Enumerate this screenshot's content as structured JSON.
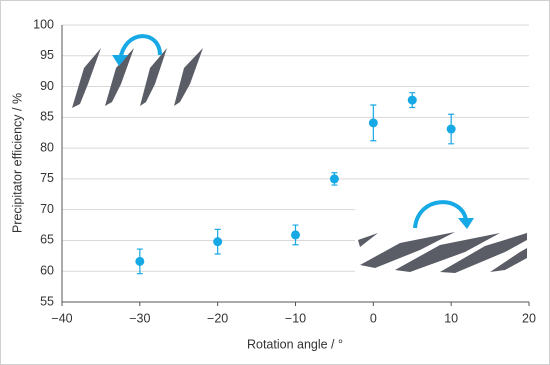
{
  "chart_data": {
    "type": "scatter",
    "xlabel": "Rotation angle / °",
    "ylabel": "Precipitator efficiency  / %",
    "series": [
      {
        "color": "#17a8e6",
        "x": [
          -30,
          -20,
          -10,
          -5,
          0,
          5,
          10
        ],
        "values": [
          61.6,
          64.8,
          65.9,
          75.0,
          84.1,
          87.8,
          83.1
        ],
        "errors": [
          2.0,
          2.0,
          1.6,
          1.0,
          2.9,
          1.2,
          2.4
        ]
      }
    ],
    "xlim": [
      -40,
      20
    ],
    "xticks": [
      {
        "value": -40,
        "label": "−40"
      },
      {
        "value": -30,
        "label": "−30"
      },
      {
        "value": -20,
        "label": "−20"
      },
      {
        "value": -10,
        "label": "−10"
      },
      0,
      10,
      20
    ],
    "ylim": [
      55,
      100
    ],
    "yticks": [
      55,
      60,
      65,
      70,
      75,
      80,
      85,
      90,
      95,
      100
    ],
    "grid": true
  }
}
